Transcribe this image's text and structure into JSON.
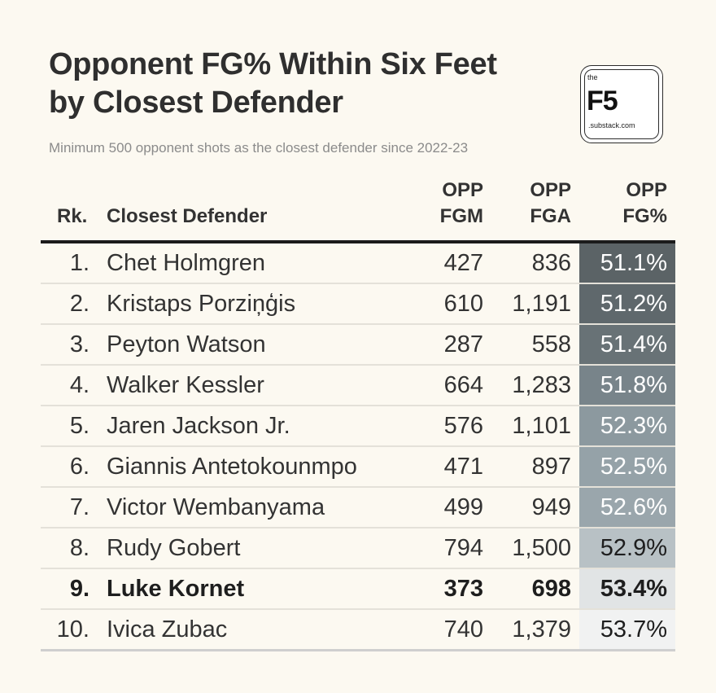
{
  "title_line1": "Opponent FG% Within Six Feet",
  "title_line2": "by Closest Defender",
  "subtitle": "Minimum 500 opponent shots as the closest defender since 2022-23",
  "logo": {
    "the": "the",
    "name": "F5",
    "domain": ".substack.com"
  },
  "chart_data": {
    "type": "table",
    "title": "Opponent FG% Within Six Feet by Closest Defender",
    "subtitle": "Minimum 500 opponent shots as the closest defender since 2022-23",
    "columns": {
      "rank": "Rk.",
      "name": "Closest Defender",
      "fgm_line1": "OPP",
      "fgm_line2": "FGM",
      "fga_line1": "OPP",
      "fga_line2": "FGA",
      "pct_line1": "OPP",
      "pct_line2": "FG%"
    },
    "color_scale": {
      "low": "#5b6366",
      "high": "#f1f2f2",
      "min_pct": 51.1,
      "max_pct": 53.7
    },
    "rows": [
      {
        "rank": "1.",
        "name": "Chet Holmgren",
        "fgm": "427",
        "fga": "836",
        "pct_label": "51.1%",
        "pct": 51.1,
        "bg": "#5b6366",
        "text_color": "#ffffff",
        "bold": false
      },
      {
        "rank": "2.",
        "name": "Kristaps Porziņģis",
        "fgm": "610",
        "fga": "1,191",
        "pct_label": "51.2%",
        "pct": 51.2,
        "bg": "#5f686c",
        "text_color": "#ffffff",
        "bold": false
      },
      {
        "rank": "3.",
        "name": "Peyton Watson",
        "fgm": "287",
        "fga": "558",
        "pct_label": "51.4%",
        "pct": 51.4,
        "bg": "#687276",
        "text_color": "#ffffff",
        "bold": false
      },
      {
        "rank": "4.",
        "name": "Walker Kessler",
        "fgm": "664",
        "fga": "1,283",
        "pct_label": "51.8%",
        "pct": 51.8,
        "bg": "#78848a",
        "text_color": "#ffffff",
        "bold": false
      },
      {
        "rank": "5.",
        "name": "Jaren Jackson Jr.",
        "fgm": "576",
        "fga": "1,101",
        "pct_label": "52.3%",
        "pct": 52.3,
        "bg": "#8c999f",
        "text_color": "#ffffff",
        "bold": false
      },
      {
        "rank": "6.",
        "name": "Giannis Antetokounmpo",
        "fgm": "471",
        "fga": "897",
        "pct_label": "52.5%",
        "pct": 52.5,
        "bg": "#95a2a8",
        "text_color": "#ffffff",
        "bold": false
      },
      {
        "rank": "7.",
        "name": "Victor Wembanyama",
        "fgm": "499",
        "fga": "949",
        "pct_label": "52.6%",
        "pct": 52.6,
        "bg": "#9aa6ac",
        "text_color": "#ffffff",
        "bold": false
      },
      {
        "rank": "8.",
        "name": "Rudy Gobert",
        "fgm": "794",
        "fga": "1,500",
        "pct_label": "52.9%",
        "pct": 52.9,
        "bg": "#b8c1c5",
        "text_color": "#1e1e1e",
        "bold": false
      },
      {
        "rank": "9.",
        "name": "Luke Kornet",
        "fgm": "373",
        "fga": "698",
        "pct_label": "53.4%",
        "pct": 53.4,
        "bg": "#e1e4e5",
        "text_color": "#1e1e1e",
        "bold": true
      },
      {
        "rank": "10.",
        "name": "Ivica Zubac",
        "fgm": "740",
        "fga": "1,379",
        "pct_label": "53.7%",
        "pct": 53.7,
        "bg": "#f1f2f2",
        "text_color": "#1e1e1e",
        "bold": false
      }
    ]
  }
}
